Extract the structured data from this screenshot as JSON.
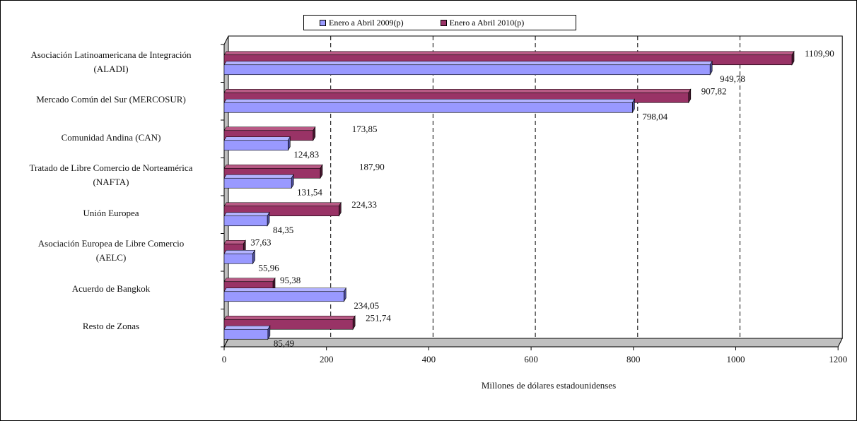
{
  "chart_data": {
    "type": "bar",
    "orientation": "horizontal",
    "categories": [
      "Asociación Latinoamericana de Integración (ALADI)",
      "Mercado Común del Sur (MERCOSUR)",
      "Comunidad Andina (CAN)",
      "Tratado de Libre Comercio de Norteamérica (NAFTA)",
      "Unión Europea",
      "Asociación Europea de Libre Comercio (AELC)",
      "Acuerdo de Bangkok",
      "Resto de Zonas"
    ],
    "category_lines": [
      [
        "Asociación Latinoamericana de Integración",
        "(ALADI)"
      ],
      [
        "Mercado Común del Sur (MERCOSUR)"
      ],
      [
        "Comunidad Andina (CAN)"
      ],
      [
        "Tratado de Libre Comercio de Norteamérica",
        "(NAFTA)"
      ],
      [
        "Unión Europea"
      ],
      [
        "Asociación Europea de Libre Comercio",
        "(AELC)"
      ],
      [
        "Acuerdo de Bangkok"
      ],
      [
        "Resto de Zonas"
      ]
    ],
    "series": [
      {
        "name": "Enero a Abril 2009(p)",
        "color": "#9999ff",
        "values": [
          949.78,
          798.04,
          124.83,
          131.54,
          84.35,
          55.96,
          234.05,
          85.49
        ],
        "labels": [
          "949,78",
          "798,04",
          "124,83",
          "131,54",
          "84,35",
          "55,96",
          "234,05",
          "85,49"
        ]
      },
      {
        "name": "Enero a Abril 2010(p)",
        "color": "#993366",
        "values": [
          1109.9,
          907.82,
          173.85,
          187.9,
          224.33,
          37.63,
          95.38,
          251.74
        ],
        "labels": [
          "1109,90",
          "907,82",
          "173,85",
          "187,90",
          "224,33",
          "37,63",
          "95,38",
          "251,74"
        ]
      }
    ],
    "xlabel": "Millones de dólares estadounidenses",
    "xlim": [
      0,
      1200
    ],
    "xticks": [
      "0",
      "200",
      "400",
      "600",
      "800",
      "1000",
      "1200"
    ],
    "grid": "vertical-dashed",
    "legend_position": "top"
  }
}
